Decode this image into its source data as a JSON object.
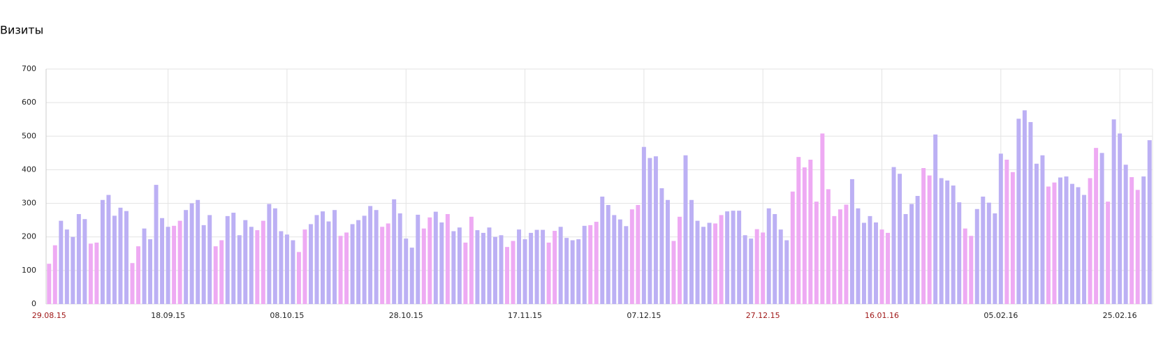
{
  "chart_data": {
    "type": "bar",
    "title": "Визиты",
    "categories": [
      "29.08.15",
      null,
      null,
      null,
      null,
      null,
      null,
      null,
      null,
      null,
      null,
      null,
      null,
      null,
      null,
      null,
      null,
      null,
      null,
      null,
      "18.09.15",
      null,
      null,
      null,
      null,
      null,
      null,
      null,
      null,
      null,
      null,
      null,
      null,
      null,
      null,
      null,
      null,
      null,
      null,
      null,
      "08.10.15",
      null,
      null,
      null,
      null,
      null,
      null,
      null,
      null,
      null,
      null,
      null,
      null,
      null,
      null,
      null,
      null,
      null,
      null,
      null,
      "28.10.15",
      null,
      null,
      null,
      null,
      null,
      null,
      null,
      null,
      null,
      null,
      null,
      null,
      null,
      null,
      null,
      null,
      null,
      null,
      null,
      "17.11.15",
      null,
      null,
      null,
      null,
      null,
      null,
      null,
      null,
      null,
      null,
      null,
      null,
      null,
      null,
      null,
      null,
      null,
      null,
      null,
      "07.12.15",
      null,
      null,
      null,
      null,
      null,
      null,
      null,
      null,
      null,
      null,
      null,
      null,
      null,
      null,
      null,
      null,
      null,
      null,
      null,
      "27.12.15",
      null,
      null,
      null,
      null,
      null,
      null,
      null,
      null,
      null,
      null,
      null,
      null,
      null,
      null,
      null,
      null,
      null,
      null,
      null,
      "16.01.16",
      null,
      null,
      null,
      null,
      null,
      null,
      null,
      null,
      null,
      null,
      null,
      null,
      null,
      null,
      null,
      null,
      null,
      null,
      null,
      "05.02.16",
      null,
      null,
      null,
      null,
      null,
      null,
      null,
      null,
      null,
      null,
      null,
      null,
      null,
      null,
      null,
      null,
      null,
      null,
      null,
      "25.02.16",
      null,
      null,
      null,
      null,
      null
    ],
    "values": [
      120,
      175,
      248,
      222,
      200,
      268,
      253,
      180,
      183,
      310,
      325,
      263,
      287,
      277,
      122,
      172,
      225,
      193,
      355,
      256,
      230,
      233,
      248,
      280,
      300,
      310,
      235,
      265,
      172,
      190,
      262,
      272,
      205,
      250,
      230,
      220,
      248,
      298,
      285,
      217,
      207,
      190,
      155,
      222,
      238,
      265,
      276,
      246,
      280,
      203,
      213,
      238,
      250,
      263,
      292,
      280,
      230,
      240,
      312,
      270,
      195,
      168,
      266,
      225,
      258,
      275,
      243,
      268,
      217,
      228,
      183,
      260,
      220,
      212,
      228,
      200,
      205,
      170,
      188,
      222,
      193,
      212,
      221,
      221,
      183,
      218,
      230,
      197,
      190,
      193,
      233,
      235,
      245,
      320,
      295,
      265,
      252,
      232,
      282,
      295,
      468,
      435,
      440,
      345,
      310,
      188,
      260,
      443,
      310,
      248,
      230,
      242,
      240,
      265,
      276,
      278,
      278,
      205,
      195,
      223,
      213,
      285,
      268,
      222,
      190,
      335,
      438,
      407,
      430,
      305,
      508,
      342,
      262,
      282,
      296,
      372,
      285,
      242,
      262,
      243,
      222,
      212,
      408,
      388,
      268,
      298,
      322,
      405,
      383,
      505,
      375,
      368,
      353,
      303,
      225,
      203,
      283,
      320,
      302,
      270,
      448,
      430,
      393,
      552,
      577,
      542,
      418,
      443,
      350,
      362,
      377,
      380,
      358,
      348,
      325,
      375,
      465,
      450,
      305,
      550,
      508,
      415,
      378,
      340,
      380,
      488
    ],
    "colors": [
      "#eeaaf3",
      "#eeaaf3",
      "#bcb0f4",
      "#bcb0f4",
      "#bcb0f4",
      "#bcb0f4",
      "#bcb0f4",
      "#eeaaf3",
      "#eeaaf3",
      "#bcb0f4",
      "#bcb0f4",
      "#bcb0f4",
      "#bcb0f4",
      "#bcb0f4",
      "#eeaaf3",
      "#eeaaf3",
      "#bcb0f4",
      "#bcb0f4",
      "#bcb0f4",
      "#bcb0f4",
      "#bcb0f4",
      "#eeaaf3",
      "#eeaaf3",
      "#bcb0f4",
      "#bcb0f4",
      "#bcb0f4",
      "#bcb0f4",
      "#bcb0f4",
      "#eeaaf3",
      "#eeaaf3",
      "#bcb0f4",
      "#bcb0f4",
      "#bcb0f4",
      "#bcb0f4",
      "#bcb0f4",
      "#eeaaf3",
      "#eeaaf3",
      "#bcb0f4",
      "#bcb0f4",
      "#bcb0f4",
      "#bcb0f4",
      "#bcb0f4",
      "#eeaaf3",
      "#eeaaf3",
      "#bcb0f4",
      "#bcb0f4",
      "#bcb0f4",
      "#bcb0f4",
      "#bcb0f4",
      "#eeaaf3",
      "#eeaaf3",
      "#bcb0f4",
      "#bcb0f4",
      "#bcb0f4",
      "#bcb0f4",
      "#bcb0f4",
      "#eeaaf3",
      "#eeaaf3",
      "#bcb0f4",
      "#bcb0f4",
      "#bcb0f4",
      "#bcb0f4",
      "#bcb0f4",
      "#eeaaf3",
      "#eeaaf3",
      "#bcb0f4",
      "#bcb0f4",
      "#eeaaf3",
      "#bcb0f4",
      "#bcb0f4",
      "#eeaaf3",
      "#eeaaf3",
      "#bcb0f4",
      "#bcb0f4",
      "#bcb0f4",
      "#bcb0f4",
      "#bcb0f4",
      "#eeaaf3",
      "#eeaaf3",
      "#bcb0f4",
      "#bcb0f4",
      "#bcb0f4",
      "#bcb0f4",
      "#bcb0f4",
      "#eeaaf3",
      "#eeaaf3",
      "#bcb0f4",
      "#bcb0f4",
      "#bcb0f4",
      "#bcb0f4",
      "#bcb0f4",
      "#eeaaf3",
      "#eeaaf3",
      "#bcb0f4",
      "#bcb0f4",
      "#bcb0f4",
      "#bcb0f4",
      "#bcb0f4",
      "#eeaaf3",
      "#eeaaf3",
      "#bcb0f4",
      "#bcb0f4",
      "#bcb0f4",
      "#bcb0f4",
      "#bcb0f4",
      "#eeaaf3",
      "#eeaaf3",
      "#bcb0f4",
      "#bcb0f4",
      "#bcb0f4",
      "#bcb0f4",
      "#bcb0f4",
      "#eeaaf3",
      "#eeaaf3",
      "#bcb0f4",
      "#bcb0f4",
      "#bcb0f4",
      "#bcb0f4",
      "#bcb0f4",
      "#eeaaf3",
      "#eeaaf3",
      "#bcb0f4",
      "#bcb0f4",
      "#bcb0f4",
      "#bcb0f4",
      "#eeaaf3",
      "#eeaaf3",
      "#eeaaf3",
      "#eeaaf3",
      "#eeaaf3",
      "#eeaaf3",
      "#eeaaf3",
      "#eeaaf3",
      "#eeaaf3",
      "#eeaaf3",
      "#bcb0f4",
      "#bcb0f4",
      "#bcb0f4",
      "#bcb0f4",
      "#bcb0f4",
      "#eeaaf3",
      "#eeaaf3",
      "#bcb0f4",
      "#bcb0f4",
      "#bcb0f4",
      "#bcb0f4",
      "#bcb0f4",
      "#eeaaf3",
      "#eeaaf3",
      "#bcb0f4",
      "#bcb0f4",
      "#bcb0f4",
      "#bcb0f4",
      "#bcb0f4",
      "#eeaaf3",
      "#eeaaf3",
      "#bcb0f4",
      "#bcb0f4",
      "#bcb0f4",
      "#bcb0f4",
      "#bcb0f4",
      "#eeaaf3",
      "#eeaaf3",
      "#bcb0f4",
      "#bcb0f4",
      "#bcb0f4",
      "#bcb0f4",
      "#bcb0f4",
      "#eeaaf3",
      "#eeaaf3",
      "#bcb0f4",
      "#bcb0f4",
      "#bcb0f4",
      "#bcb0f4",
      "#bcb0f4",
      "#eeaaf3",
      "#eeaaf3",
      "#bcb0f4",
      "#eeaaf3",
      "#bcb0f4",
      "#bcb0f4",
      "#bcb0f4",
      "#eeaaf3",
      "#eeaaf3",
      "#bcb0f4",
      "#bcb0f4"
    ],
    "weekend_color": "#eeaaf3",
    "weekend_label_color": "#a01818",
    "ylim": [
      0,
      700
    ],
    "yticks": [
      0,
      100,
      200,
      300,
      400,
      500,
      600,
      700
    ],
    "grid": true
  }
}
